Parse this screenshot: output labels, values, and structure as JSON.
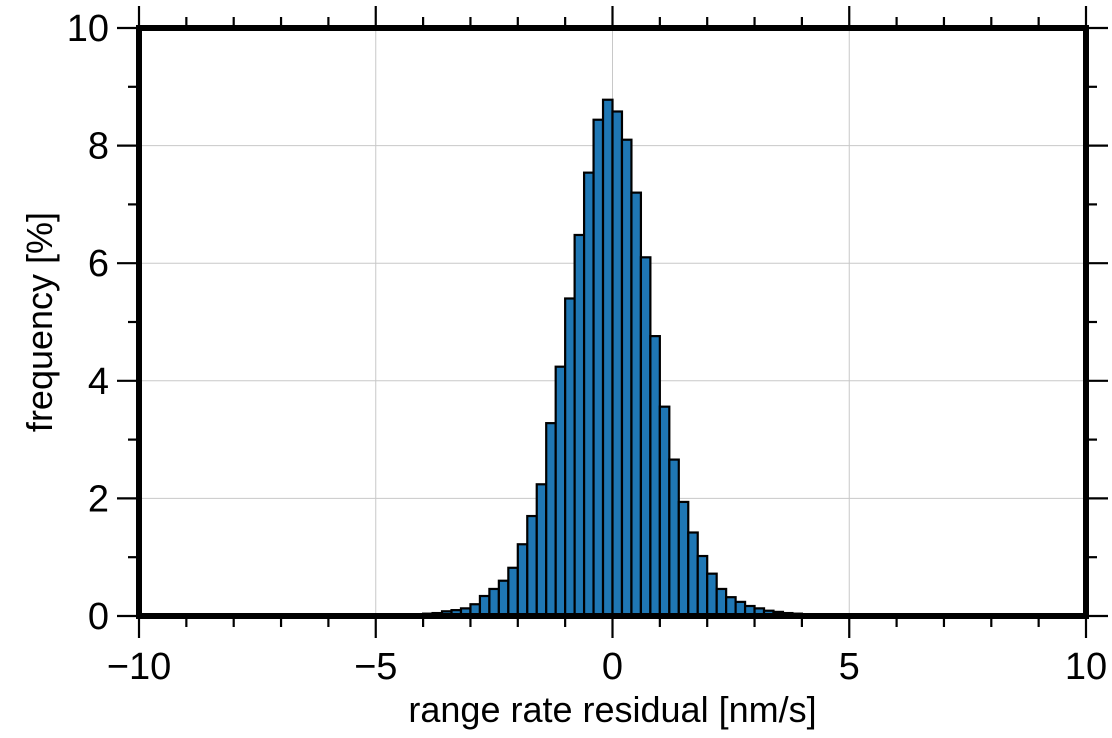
{
  "chart_data": {
    "type": "bar",
    "title": "",
    "xlabel": "range rate residual [nm/s]",
    "ylabel": "frequency [%]",
    "xlim": [
      -10,
      10
    ],
    "ylim": [
      0,
      10
    ],
    "x_ticks": [
      -10,
      -5,
      0,
      5,
      10
    ],
    "x_tick_labels": [
      "−10",
      "−5",
      "0",
      "5",
      "10"
    ],
    "y_ticks": [
      0,
      2,
      4,
      6,
      8,
      10
    ],
    "y_tick_labels": [
      "0",
      "2",
      "4",
      "6",
      "8",
      "10"
    ],
    "grid": true,
    "legend": "none",
    "bar_color": "#1f77b4",
    "bin_width": 0.2,
    "bin_centers": [
      -4.1,
      -3.9,
      -3.7,
      -3.5,
      -3.3,
      -3.1,
      -2.9,
      -2.7,
      -2.5,
      -2.3,
      -2.1,
      -1.9,
      -1.7,
      -1.5,
      -1.3,
      -1.1,
      -0.9,
      -0.7,
      -0.5,
      -0.3,
      -0.1,
      0.1,
      0.3,
      0.5,
      0.7,
      0.9,
      1.1,
      1.3,
      1.5,
      1.7,
      1.9,
      2.1,
      2.3,
      2.5,
      2.7,
      2.9,
      3.1,
      3.3,
      3.5,
      3.7,
      3.9,
      4.1
    ],
    "values": [
      0.03,
      0.04,
      0.05,
      0.08,
      0.1,
      0.13,
      0.2,
      0.34,
      0.46,
      0.6,
      0.82,
      1.22,
      1.7,
      2.24,
      3.28,
      4.24,
      5.4,
      6.48,
      7.54,
      8.44,
      8.78,
      8.58,
      8.1,
      7.2,
      6.1,
      4.76,
      3.56,
      2.66,
      1.94,
      1.42,
      1.02,
      0.72,
      0.46,
      0.32,
      0.24,
      0.17,
      0.13,
      0.09,
      0.07,
      0.05,
      0.04,
      0.03
    ]
  }
}
